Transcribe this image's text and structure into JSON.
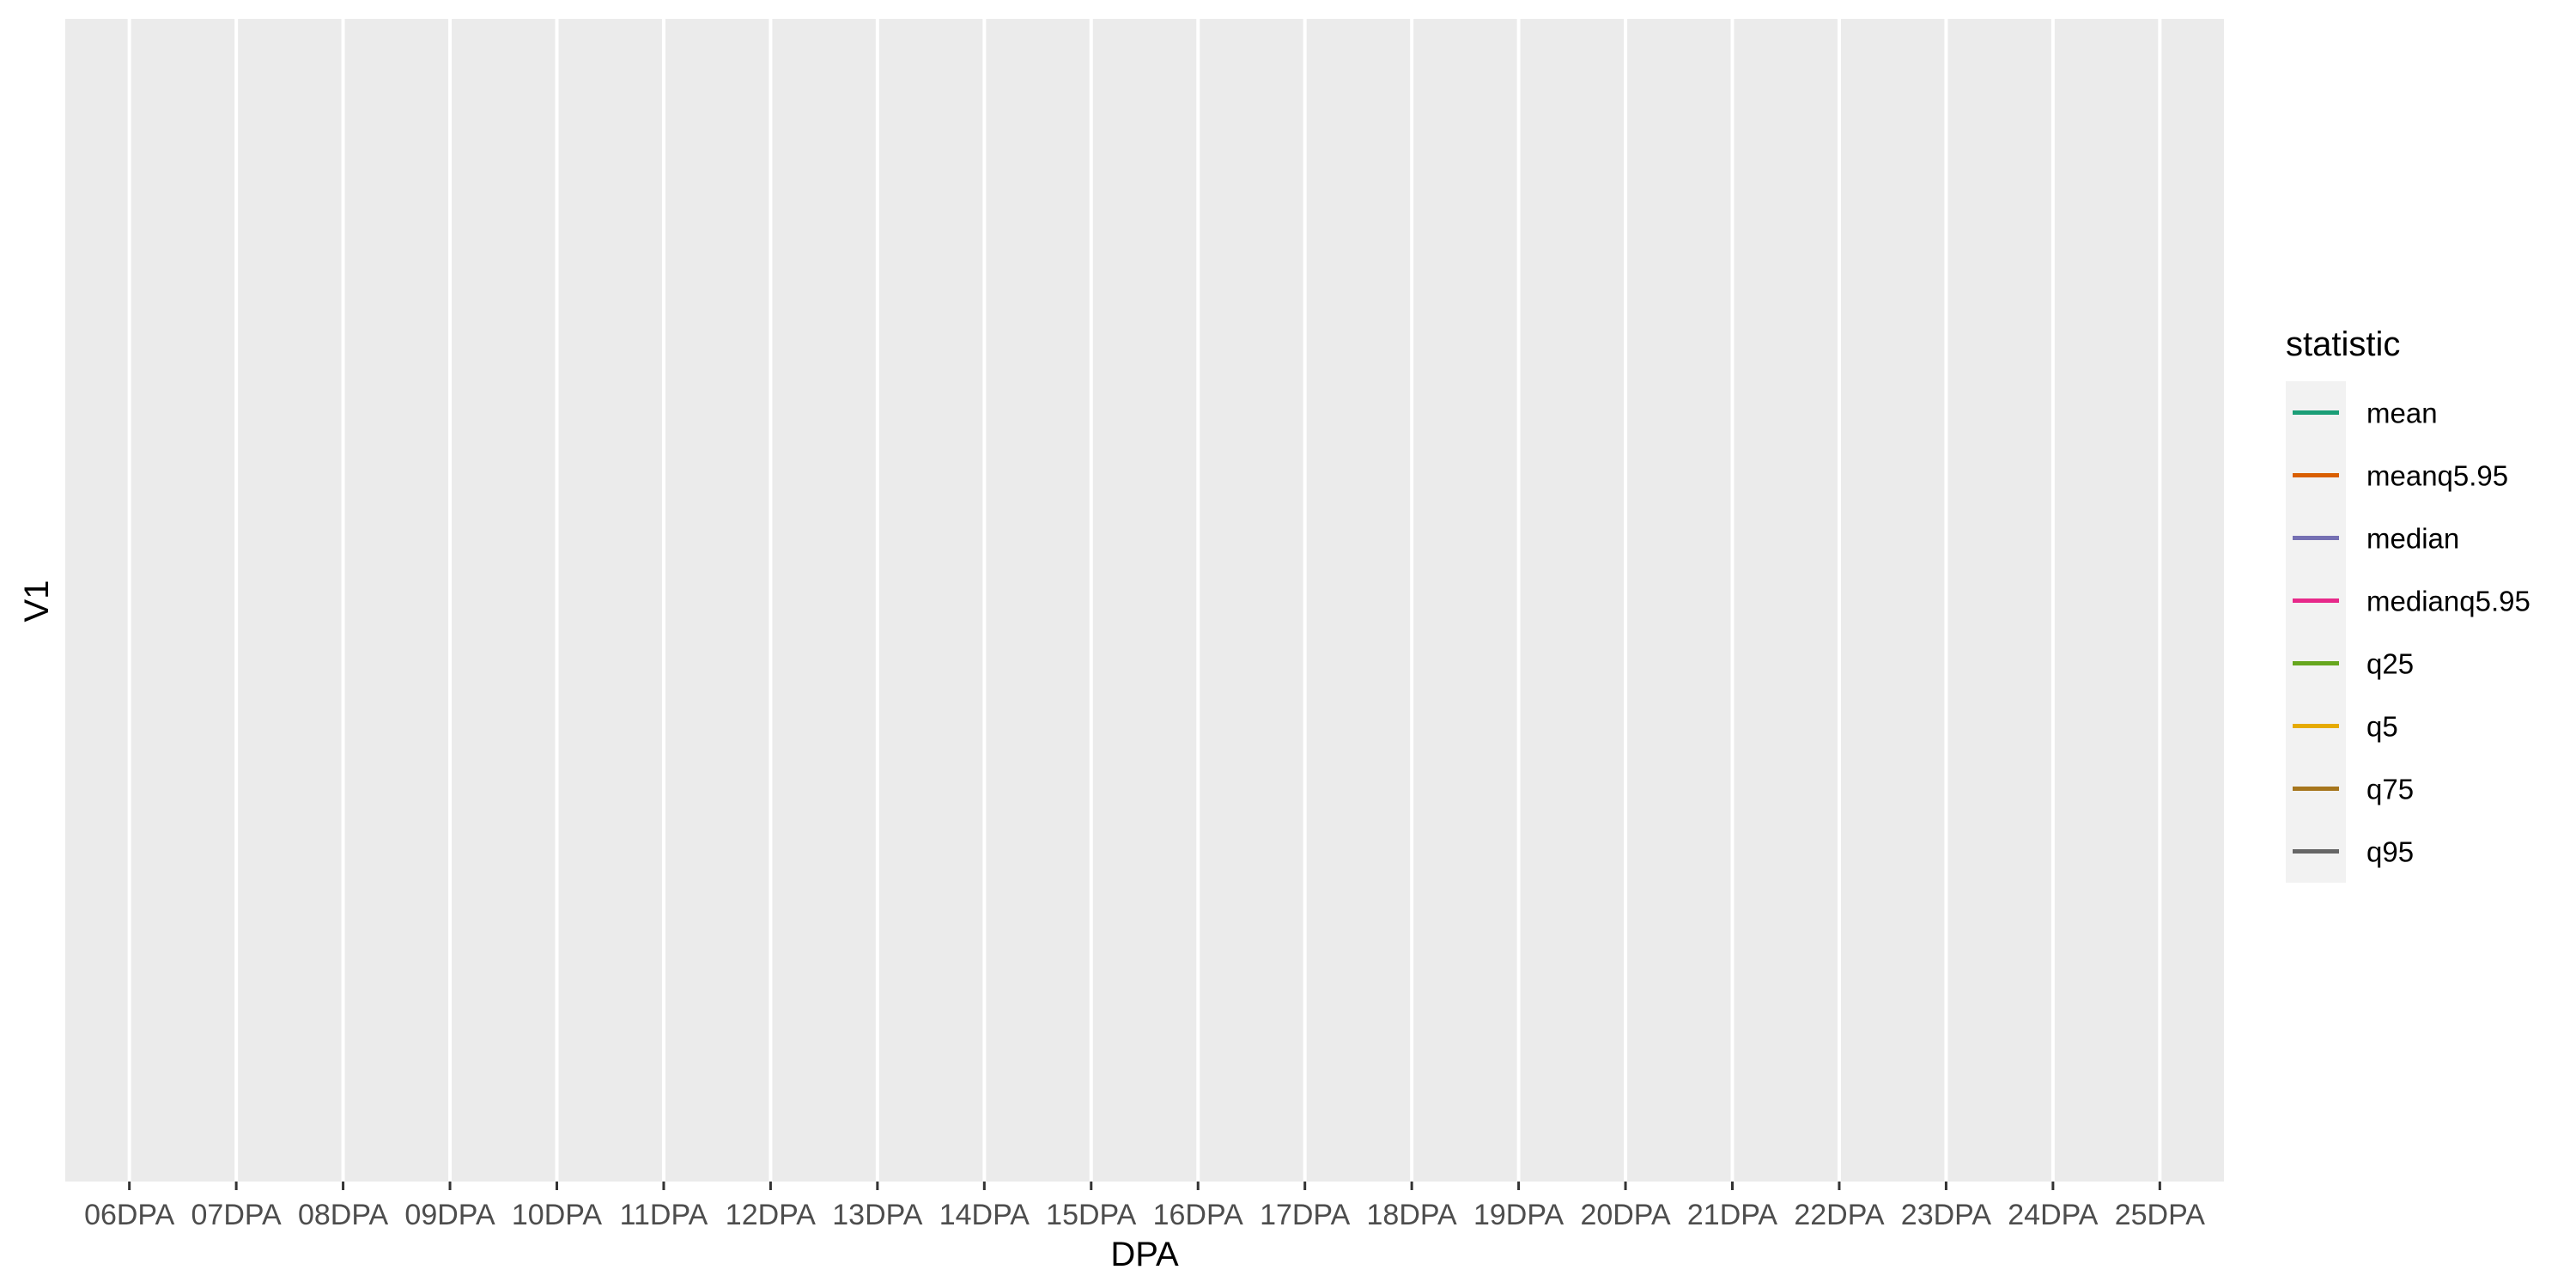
{
  "chart_data": {
    "type": "line",
    "x_type": "categorical",
    "categories": [
      "06DPA",
      "07DPA",
      "08DPA",
      "09DPA",
      "10DPA",
      "11DPA",
      "12DPA",
      "13DPA",
      "14DPA",
      "15DPA",
      "16DPA",
      "17DPA",
      "18DPA",
      "19DPA",
      "20DPA",
      "21DPA",
      "22DPA",
      "23DPA",
      "24DPA",
      "25DPA"
    ],
    "xlabel": "DPA",
    "ylabel": "V1",
    "series": [],
    "grid": true,
    "legend": {
      "title": "statistic",
      "position": "right",
      "entries": [
        {
          "name": "mean",
          "color": "#1B9E77"
        },
        {
          "name": "meanq5.95",
          "color": "#D95F02"
        },
        {
          "name": "median",
          "color": "#7570B3"
        },
        {
          "name": "medianq5.95",
          "color": "#E7298A"
        },
        {
          "name": "q25",
          "color": "#66A61E"
        },
        {
          "name": "q5",
          "color": "#E6AB02"
        },
        {
          "name": "q75",
          "color": "#A6761D"
        },
        {
          "name": "q95",
          "color": "#666666"
        }
      ]
    }
  },
  "colors": {
    "panel_background": "#EBEBEB",
    "grid_line": "#FFFFFF",
    "tick_color": "#333333",
    "legend_key_background": "#F2F2F2"
  }
}
